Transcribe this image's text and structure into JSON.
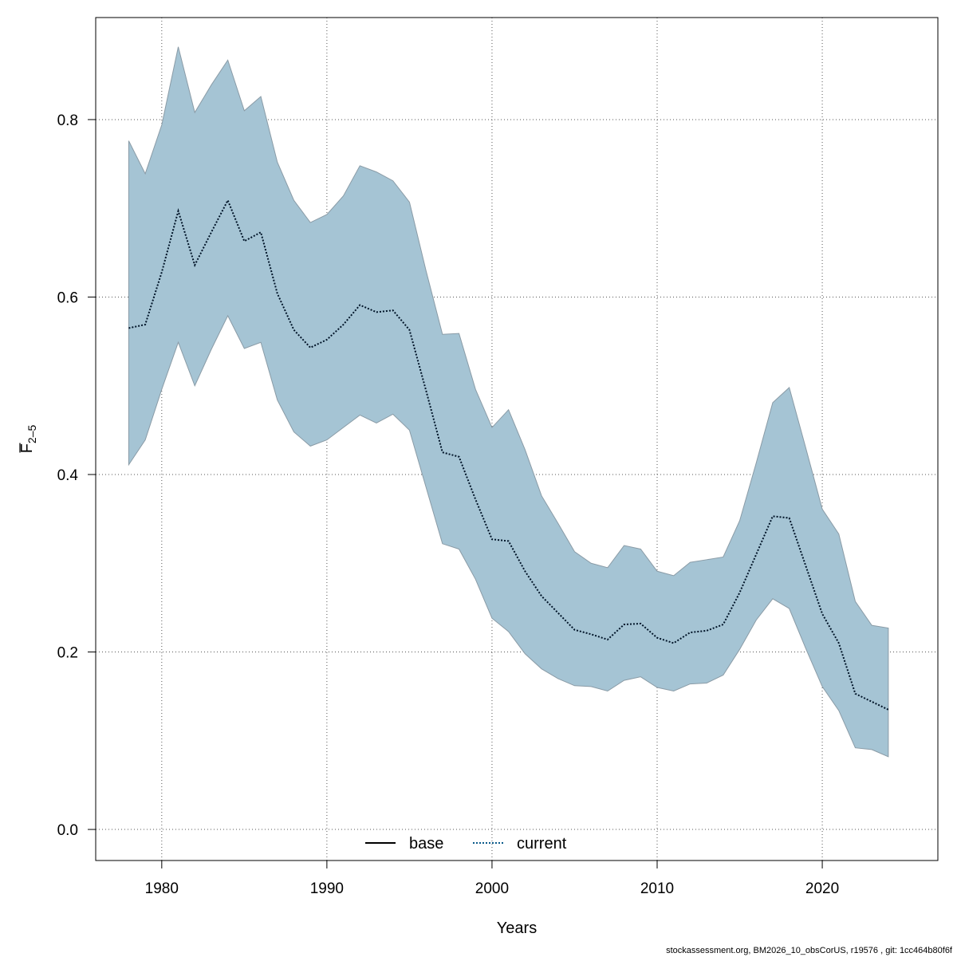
{
  "chart_data": {
    "type": "area",
    "xlabel": "Years",
    "ylabel": {
      "main": "F",
      "sub": "2–5"
    },
    "xlim": [
      1976,
      2027
    ],
    "ylim": [
      -0.035,
      0.915
    ],
    "xticks": [
      1980,
      1990,
      2000,
      2010,
      2020
    ],
    "yticks": [
      0.0,
      0.2,
      0.4,
      0.6,
      0.8
    ],
    "ytick_labels": [
      "0.0",
      "0.2",
      "0.4",
      "0.6",
      "0.8"
    ],
    "grid": true,
    "legend": {
      "placement": "bottom-center",
      "entries": [
        "base",
        "current"
      ]
    },
    "years": [
      1978,
      1979,
      1980,
      1981,
      1982,
      1983,
      1984,
      1985,
      1986,
      1987,
      1988,
      1989,
      1990,
      1991,
      1992,
      1993,
      1994,
      1995,
      1996,
      1997,
      1998,
      1999,
      2000,
      2001,
      2002,
      2003,
      2004,
      2005,
      2006,
      2007,
      2008,
      2009,
      2010,
      2011,
      2012,
      2013,
      2014,
      2015,
      2016,
      2017,
      2018,
      2019,
      2020,
      2021,
      2022,
      2023,
      2024
    ],
    "series": [
      {
        "name": "current",
        "style": "dotted",
        "color": "#001428",
        "values": [
          0.565,
          0.569,
          0.628,
          0.697,
          0.636,
          0.673,
          0.709,
          0.663,
          0.673,
          0.604,
          0.563,
          0.543,
          0.552,
          0.569,
          0.591,
          0.583,
          0.585,
          0.563,
          0.495,
          0.425,
          0.42,
          0.372,
          0.327,
          0.325,
          0.291,
          0.263,
          0.244,
          0.225,
          0.22,
          0.214,
          0.231,
          0.232,
          0.216,
          0.21,
          0.222,
          0.224,
          0.231,
          0.267,
          0.31,
          0.353,
          0.351,
          0.297,
          0.243,
          0.21,
          0.153,
          0.144,
          0.135
        ],
        "lower": [
          0.411,
          0.439,
          0.496,
          0.549,
          0.5,
          0.541,
          0.579,
          0.542,
          0.549,
          0.484,
          0.448,
          0.432,
          0.439,
          0.453,
          0.467,
          0.458,
          0.468,
          0.45,
          0.386,
          0.322,
          0.316,
          0.282,
          0.238,
          0.223,
          0.198,
          0.181,
          0.17,
          0.162,
          0.161,
          0.156,
          0.168,
          0.172,
          0.16,
          0.156,
          0.164,
          0.165,
          0.174,
          0.203,
          0.236,
          0.26,
          0.249,
          0.204,
          0.161,
          0.134,
          0.092,
          0.09,
          0.082
        ],
        "upper": [
          0.776,
          0.739,
          0.794,
          0.882,
          0.808,
          0.839,
          0.867,
          0.81,
          0.826,
          0.752,
          0.709,
          0.684,
          0.693,
          0.714,
          0.748,
          0.741,
          0.731,
          0.707,
          0.63,
          0.558,
          0.559,
          0.496,
          0.453,
          0.473,
          0.428,
          0.376,
          0.345,
          0.313,
          0.3,
          0.295,
          0.32,
          0.316,
          0.291,
          0.286,
          0.301,
          0.304,
          0.307,
          0.348,
          0.413,
          0.481,
          0.498,
          0.43,
          0.361,
          0.333,
          0.257,
          0.23,
          0.227
        ]
      },
      {
        "name": "base",
        "style": "solid",
        "color": "#000000",
        "values": [
          0.565,
          0.569,
          0.628,
          0.697,
          0.636,
          0.673,
          0.709,
          0.663,
          0.673,
          0.604,
          0.563,
          0.543,
          0.552,
          0.569,
          0.591,
          0.583,
          0.585,
          0.563,
          0.495,
          0.425,
          0.42,
          0.372,
          0.327,
          0.325,
          0.291,
          0.263,
          0.244,
          0.225,
          0.22,
          0.214,
          0.231,
          0.232,
          0.216,
          0.21,
          0.222,
          0.224,
          0.231,
          0.267,
          0.31,
          0.353,
          0.351,
          0.297,
          0.243,
          0.21,
          0.153,
          0.144,
          0.135
        ]
      }
    ],
    "band_color": "#a5c4d4",
    "band_edge_color": "#8a9ba6"
  },
  "footer": "stockassessment.org, BM2026_10_obsCorUS, r19576 , git: 1cc464b80f6f"
}
